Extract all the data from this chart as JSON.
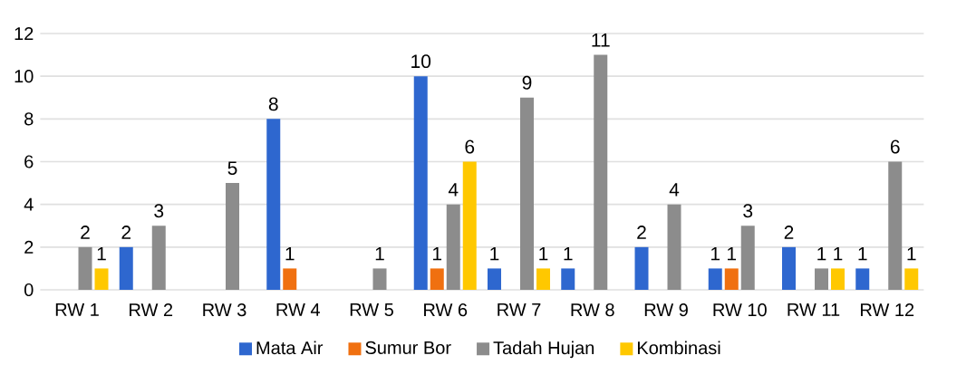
{
  "chart_data": {
    "type": "bar",
    "categories": [
      "RW 1",
      "RW 2",
      "RW 3",
      "RW 4",
      "RW 5",
      "RW 6",
      "RW 7",
      "RW 8",
      "RW 9",
      "RW 10",
      "RW 11",
      "RW 12"
    ],
    "series": [
      {
        "name": "Mata Air",
        "color": "#2e67cf",
        "values": [
          null,
          2,
          null,
          8,
          null,
          10,
          1,
          1,
          2,
          1,
          2,
          1
        ]
      },
      {
        "name": "Sumur Bor",
        "color": "#f07010",
        "values": [
          null,
          null,
          null,
          1,
          null,
          1,
          null,
          null,
          null,
          1,
          null,
          null
        ]
      },
      {
        "name": "Tadah Hujan",
        "color": "#8c8c8c",
        "values": [
          2,
          3,
          5,
          null,
          1,
          4,
          9,
          11,
          4,
          3,
          1,
          6
        ]
      },
      {
        "name": "Kombinasi",
        "color": "#ffc800",
        "values": [
          1,
          null,
          null,
          null,
          null,
          6,
          1,
          null,
          null,
          null,
          1,
          1
        ]
      }
    ],
    "ylim": [
      0,
      12
    ],
    "yticks": [
      0,
      2,
      4,
      6,
      8,
      10,
      12
    ],
    "grid": "y",
    "legend": "bottom",
    "data_labels": true
  }
}
